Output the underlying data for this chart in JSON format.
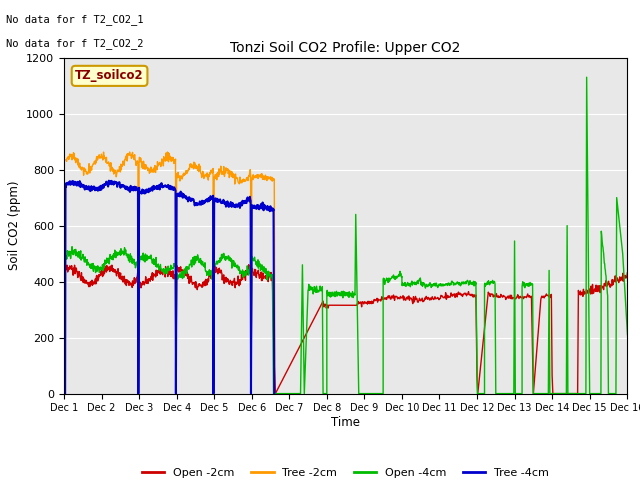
{
  "title": "Tonzi Soil CO2 Profile: Upper CO2",
  "ylabel": "Soil CO2 (ppm)",
  "xlabel": "Time",
  "no_data_text_1": "No data for f T2_CO2_1",
  "no_data_text_2": "No data for f T2_CO2_2",
  "legend_label": "TZ_soilco2",
  "ylim": [
    0,
    1200
  ],
  "xlim": [
    0,
    15
  ],
  "yticks": [
    0,
    200,
    400,
    600,
    800,
    1000,
    1200
  ],
  "background_color": "#dcdcdc",
  "plot_bg": "#e8e8e8",
  "colors": {
    "open_2cm": "#cc0000",
    "tree_2cm": "#ff9900",
    "open_4cm": "#00bb00",
    "tree_4cm": "#0000cc"
  },
  "legend_entries": [
    "Open -2cm",
    "Tree -2cm",
    "Open -4cm",
    "Tree -4cm"
  ],
  "x_tick_labels": [
    "Dec 1",
    "Dec 2",
    "Dec 3",
    "Dec 4",
    "Dec 5",
    "Dec 6",
    "Dec 7",
    "Dec 8",
    "Dec 9",
    "Dec 10",
    "Dec 11",
    "Dec 12",
    "Dec 13",
    "Dec 14",
    "Dec 15",
    "Dec 16"
  ]
}
